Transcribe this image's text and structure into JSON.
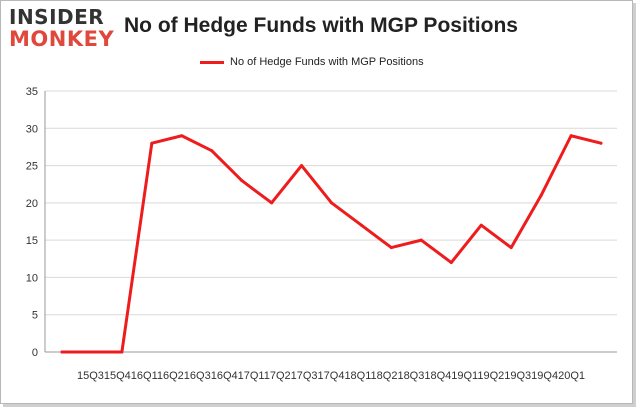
{
  "logo": {
    "line1": "INSIDER",
    "line2": "MONKEY"
  },
  "chart_data": {
    "type": "line",
    "title": "No of Hedge Funds with MGP Positions",
    "categories": [
      "15Q3",
      "15Q4",
      "16Q1",
      "16Q2",
      "16Q3",
      "16Q4",
      "17Q1",
      "17Q2",
      "17Q3",
      "17Q4",
      "18Q1",
      "18Q2",
      "18Q3",
      "18Q4",
      "19Q1",
      "19Q2",
      "19Q3",
      "19Q4",
      "20Q1"
    ],
    "x_tick_text": "15Q315Q416Q116Q216Q316Q417Q117Q217Q317Q418Q118Q218Q318Q419Q119Q219Q319Q420Q1",
    "series": [
      {
        "name": "No of Hedge Funds with MGP Positions",
        "values": [
          0,
          0,
          0,
          28,
          29,
          27,
          23,
          20,
          25,
          20,
          17,
          14,
          15,
          12,
          17,
          14,
          21,
          29,
          28
        ]
      }
    ],
    "ylim": [
      0,
      35
    ],
    "yticks": [
      0,
      5,
      10,
      15,
      20,
      25,
      30,
      35
    ],
    "grid": true,
    "legend_position": "top-center",
    "line_color": "#ee1c1c"
  }
}
